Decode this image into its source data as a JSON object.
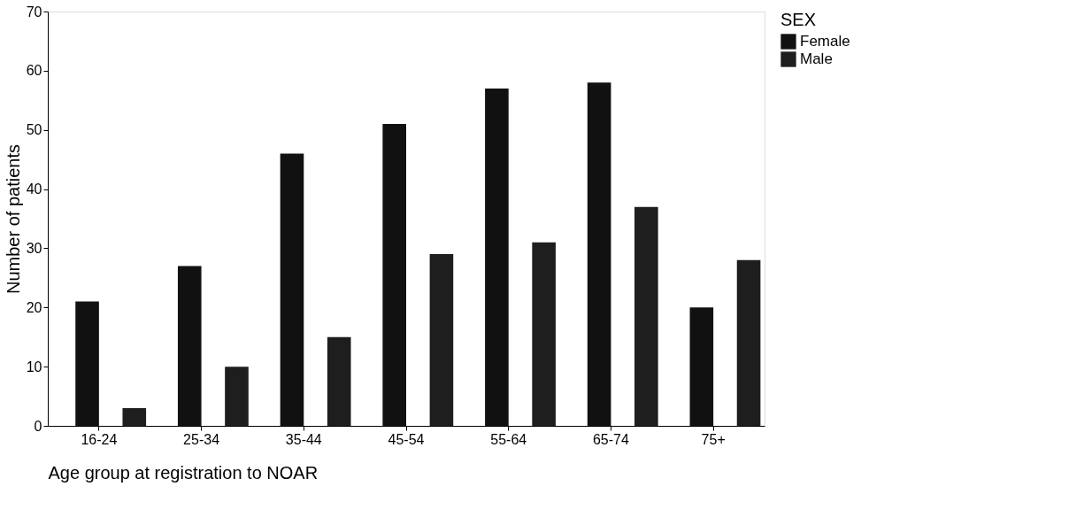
{
  "chart_data": {
    "type": "bar",
    "xlabel": "Age group at registration to NOAR",
    "ylabel": "Number of patients",
    "legend_title": "SEX",
    "categories": [
      "16-24",
      "25-34",
      "35-44",
      "45-54",
      "55-64",
      "65-74",
      "75+"
    ],
    "series": [
      {
        "name": "Female",
        "color": "#111111",
        "values": [
          21,
          27,
          46,
          51,
          57,
          58,
          20
        ]
      },
      {
        "name": "Male",
        "color": "#1e1e1e",
        "values": [
          3,
          10,
          15,
          29,
          31,
          37,
          28
        ]
      }
    ],
    "ylim": [
      0,
      70
    ],
    "yticks": [
      0,
      10,
      20,
      30,
      40,
      50,
      60,
      70
    ],
    "grid": false,
    "legend": "right"
  }
}
